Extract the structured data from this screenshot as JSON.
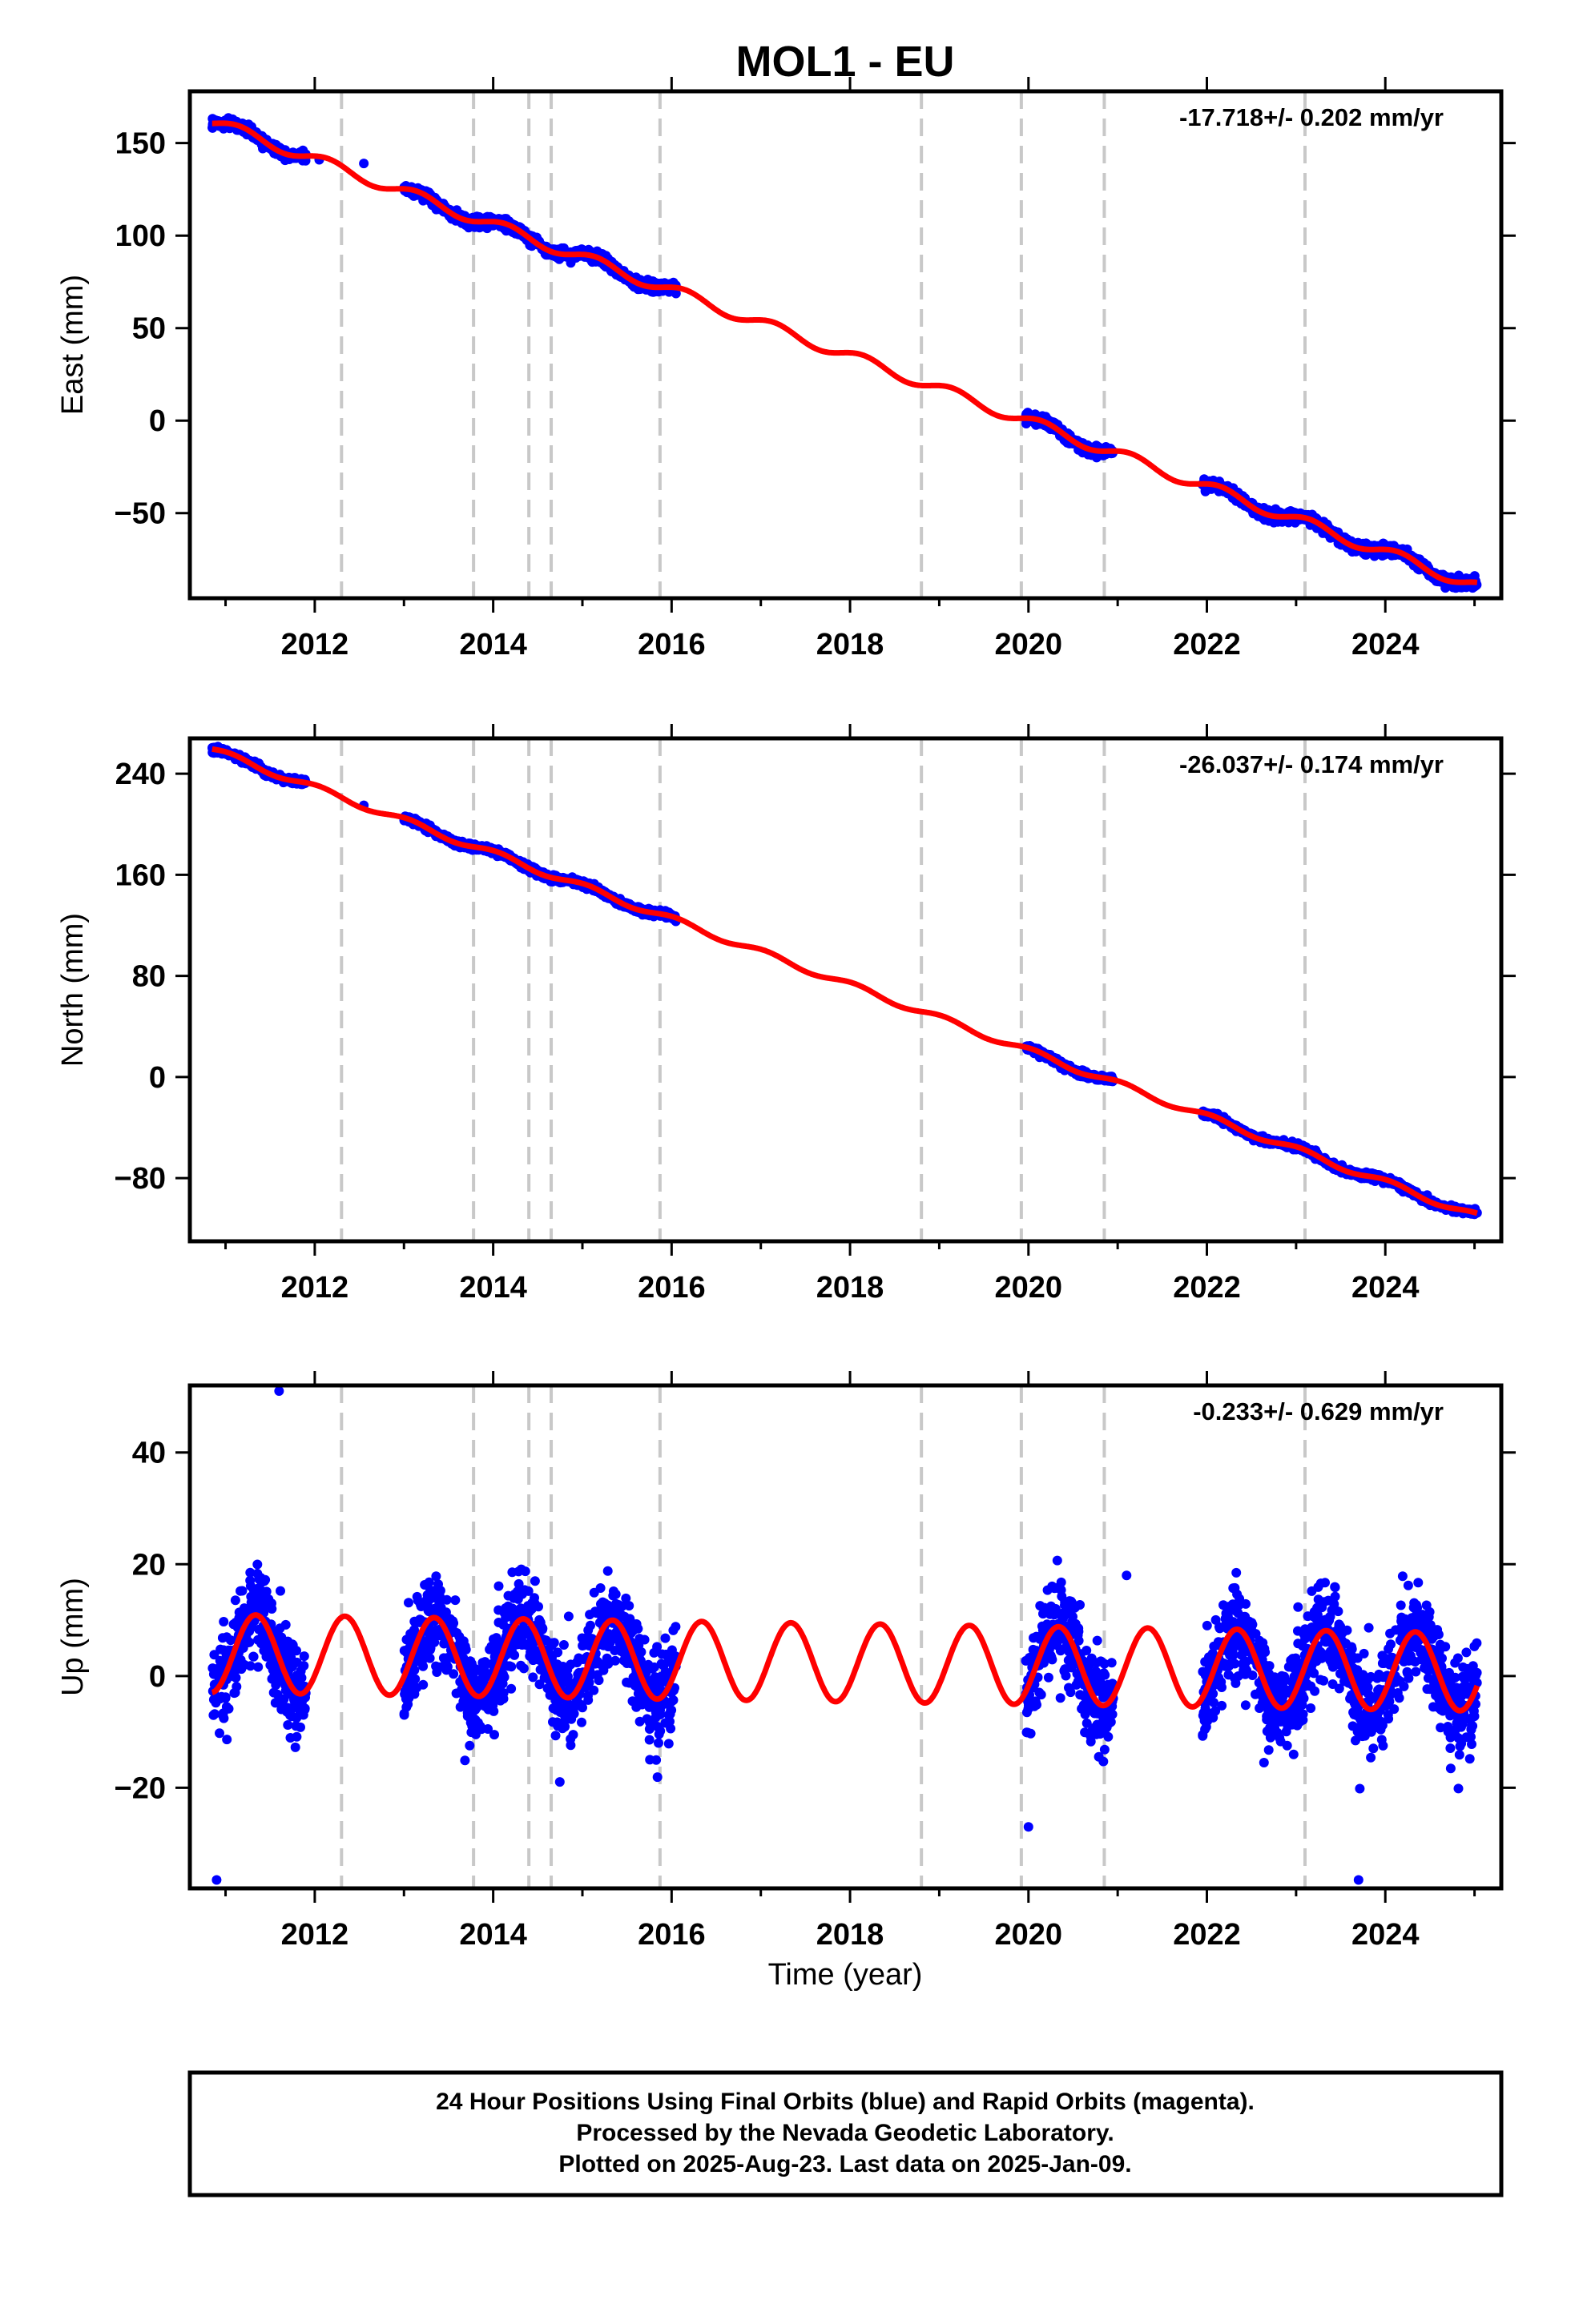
{
  "figure": {
    "title": "MOL1 - EU",
    "xlabel": "Time (year)",
    "footer": [
      "24 Hour Positions Using Final Orbits (blue) and Rapid Orbits (magenta).",
      "Processed by the Nevada Geodetic Laboratory.",
      "Plotted on 2025-Aug-23. Last data on 2025-Jan-09."
    ],
    "colors": {
      "data": "#0000ff",
      "model": "#ff0000",
      "event_lines": "#c8c8c8",
      "frame": "#000000"
    }
  },
  "chart_data": [
    {
      "type": "scatter",
      "panel": "east",
      "ylabel": "East (mm)",
      "rate_label": "-17.718+/- 0.202 mm/yr",
      "xlim": [
        2010.6,
        2025.3
      ],
      "ylim": [
        -96,
        178
      ],
      "xticks": [
        2012,
        2014,
        2016,
        2018,
        2020,
        2022,
        2024
      ],
      "yticks": [
        -50,
        0,
        50,
        100,
        150
      ],
      "tick_labels": [
        "−50",
        "0",
        "50",
        "100",
        "150"
      ],
      "event_lines": [
        2012.3,
        2013.78,
        2014.4,
        2014.65,
        2015.87,
        2018.8,
        2019.92,
        2020.85,
        2023.1
      ],
      "model": {
        "trend_per_year": -17.718,
        "value_at_2011": 159,
        "annual_amplitude": 3.0,
        "annual_phase": 0.6
      },
      "data_segments": [
        [
          2010.85,
          2011.9
        ],
        [
          2013.0,
          2016.05
        ],
        [
          2019.97,
          2020.95
        ],
        [
          2021.95,
          2025.03
        ]
      ],
      "isolated_points": [
        [
          2012.05,
          141
        ],
        [
          2012.55,
          139
        ]
      ],
      "noise_sd": 2.0
    },
    {
      "type": "scatter",
      "panel": "north",
      "ylabel": "North (mm)",
      "rate_label": "-26.037+/- 0.174 mm/yr",
      "xlim": [
        2010.6,
        2025.3
      ],
      "ylim": [
        -130,
        268
      ],
      "xticks": [
        2012,
        2014,
        2016,
        2018,
        2020,
        2022,
        2024
      ],
      "yticks": [
        -80,
        0,
        80,
        160,
        240
      ],
      "tick_labels": [
        "−80",
        "0",
        "80",
        "160",
        "240"
      ],
      "event_lines": [
        2012.3,
        2013.78,
        2014.4,
        2014.65,
        2015.87,
        2018.8,
        2019.92,
        2020.85,
        2023.1
      ],
      "model": {
        "trend_per_year": -26.037,
        "value_at_2011": 255,
        "annual_amplitude": 2.5,
        "annual_phase": 1.2
      },
      "data_segments": [
        [
          2010.85,
          2011.9
        ],
        [
          2013.0,
          2016.05
        ],
        [
          2019.97,
          2020.95
        ],
        [
          2021.95,
          2025.03
        ]
      ],
      "isolated_points": [
        [
          2012.55,
          215
        ]
      ],
      "noise_sd": 1.8
    },
    {
      "type": "scatter",
      "panel": "up",
      "ylabel": "Up (mm)",
      "rate_label": "-0.233+/- 0.629 mm/yr",
      "xlim": [
        2010.6,
        2025.3
      ],
      "ylim": [
        -38,
        52
      ],
      "xticks": [
        2012,
        2014,
        2016,
        2018,
        2020,
        2022,
        2024
      ],
      "yticks": [
        -20,
        0,
        20,
        40
      ],
      "tick_labels": [
        "−20",
        "0",
        "20",
        "40"
      ],
      "event_lines": [
        2012.3,
        2013.78,
        2014.4,
        2014.65,
        2015.87,
        2018.8,
        2019.92,
        2020.85,
        2023.1
      ],
      "model": {
        "trend_per_year": -0.233,
        "value_at_2011": 4,
        "annual_amplitude": 7.0,
        "annual_phase": -0.55
      },
      "data_segments": [
        [
          2010.85,
          2011.9
        ],
        [
          2013.0,
          2016.05
        ],
        [
          2019.97,
          2020.95
        ],
        [
          2021.95,
          2025.03
        ]
      ],
      "isolated_points": [
        [
          2011.6,
          51
        ],
        [
          2010.9,
          -36.5
        ],
        [
          2023.7,
          -36.5
        ],
        [
          2021.1,
          18
        ],
        [
          2020.0,
          -27
        ]
      ],
      "noise_sd": 5.5
    }
  ]
}
